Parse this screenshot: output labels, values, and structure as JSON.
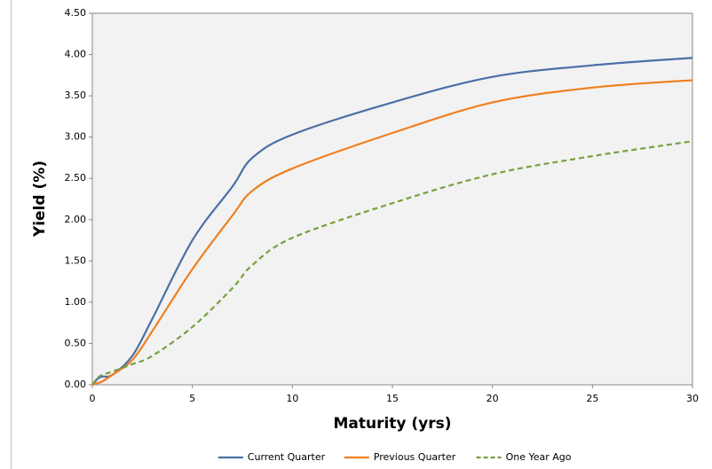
{
  "chart_data": {
    "type": "line",
    "x_label": "Maturity (yrs)",
    "y_label": "Yield (%)",
    "x": [
      0,
      0.25,
      0.5,
      1,
      2,
      3,
      5,
      7,
      8,
      10,
      15,
      20,
      25,
      30
    ],
    "series": [
      {
        "name": "Current Quarter",
        "color": "#4a6fa5",
        "style": "solid",
        "values": [
          0,
          0.07,
          0.1,
          0.12,
          0.35,
          0.8,
          1.75,
          2.4,
          2.75,
          3.03,
          3.42,
          3.73,
          3.87,
          3.96
        ]
      },
      {
        "name": "Previous Quarter",
        "color": "#f07f1e",
        "style": "solid",
        "values": [
          0,
          0.02,
          0.04,
          0.12,
          0.3,
          0.65,
          1.4,
          2.05,
          2.35,
          2.62,
          3.05,
          3.42,
          3.6,
          3.69
        ]
      },
      {
        "name": "One Year Ago",
        "color": "#78a040",
        "style": "dashed",
        "values": [
          0,
          0.08,
          0.12,
          0.16,
          0.25,
          0.35,
          0.7,
          1.17,
          1.45,
          1.78,
          2.2,
          2.55,
          2.77,
          2.95
        ]
      }
    ],
    "xlim": [
      0,
      30
    ],
    "xticks": [
      0,
      5,
      10,
      15,
      20,
      25,
      30
    ],
    "ylim": [
      0,
      4.5
    ],
    "yticks": [
      {
        "value": 0,
        "label": "0.00"
      },
      {
        "value": 0.5,
        "label": "0.50"
      },
      {
        "value": 1,
        "label": "1.00"
      },
      {
        "value": 1.5,
        "label": "1.50"
      },
      {
        "value": 2,
        "label": "2.00"
      },
      {
        "value": 2.5,
        "label": "2.50"
      },
      {
        "value": 3,
        "label": "3.00"
      },
      {
        "value": 3.5,
        "label": "3.50"
      },
      {
        "value": 4,
        "label": "4.00"
      },
      {
        "value": 4.5,
        "label": "4.50"
      }
    ],
    "grid": false,
    "legend": "bottom"
  }
}
